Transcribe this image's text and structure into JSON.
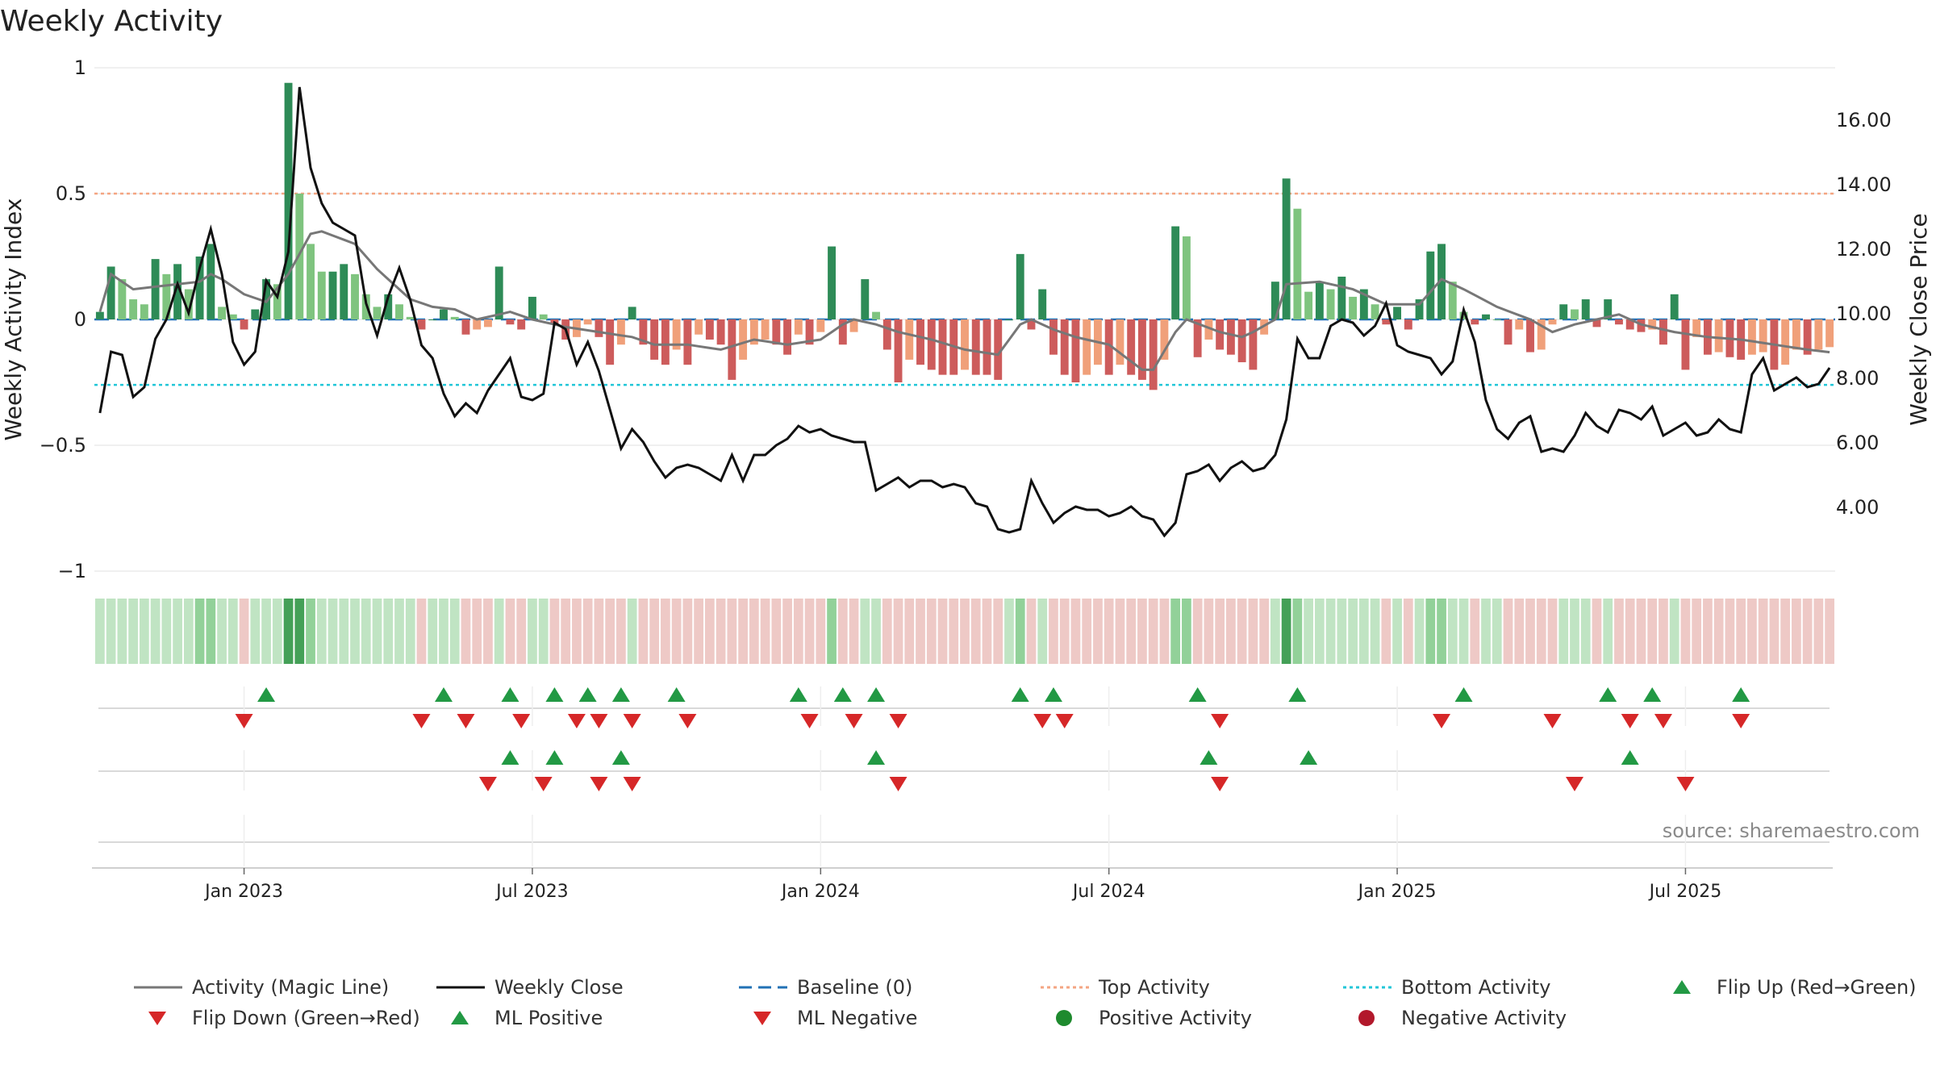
{
  "chart_data": {
    "type": "bar",
    "title": "Weekly Activity",
    "y_left_label": "Weekly Activity Index",
    "y_right_label": "Weekly Close Price",
    "y_left_ticks": [
      "1",
      "0.5",
      "0",
      "−0.5",
      "−1"
    ],
    "y_left_range": [
      -1,
      1
    ],
    "y_right_ticks": [
      "16.00",
      "14.00",
      "12.00",
      "10.00",
      "8.00",
      "6.00",
      "4.00"
    ],
    "y_right_range": [
      2.0,
      17.6
    ],
    "x_ticks": [
      "Jan 2023",
      "Jul 2023",
      "Jan 2024",
      "Jul 2024",
      "Jan 2025",
      "Jul 2025"
    ],
    "x_tick_weeks": [
      13,
      39,
      65,
      91,
      117,
      143
    ],
    "top_activity": 0.5,
    "bottom_activity": -0.26,
    "baseline": 0,
    "weeks": 157,
    "activity_keyframes": [
      [
        0,
        0.03
      ],
      [
        1,
        0.21
      ],
      [
        2,
        0.16
      ],
      [
        3,
        0.08
      ],
      [
        4,
        0.06
      ],
      [
        5,
        0.24
      ],
      [
        6,
        0.18
      ],
      [
        7,
        0.22
      ],
      [
        8,
        0.12
      ],
      [
        9,
        0.25
      ],
      [
        10,
        0.3
      ],
      [
        11,
        0.05
      ],
      [
        12,
        0.02
      ],
      [
        13,
        -0.04
      ],
      [
        14,
        0.04
      ],
      [
        15,
        0.16
      ],
      [
        16,
        0.14
      ],
      [
        17,
        0.94
      ],
      [
        18,
        0.5
      ],
      [
        19,
        0.3
      ],
      [
        20,
        0.19
      ],
      [
        21,
        0.19
      ],
      [
        22,
        0.22
      ],
      [
        23,
        0.18
      ],
      [
        24,
        0.1
      ],
      [
        25,
        0.05
      ],
      [
        26,
        0.1
      ],
      [
        27,
        0.06
      ],
      [
        29,
        -0.04
      ],
      [
        31,
        0.04
      ],
      [
        32,
        0.01
      ],
      [
        33,
        -0.06
      ],
      [
        34,
        -0.04
      ],
      [
        35,
        -0.03
      ],
      [
        36,
        0.21
      ],
      [
        37,
        -0.02
      ],
      [
        38,
        -0.04
      ],
      [
        39,
        0.09
      ],
      [
        40,
        0.02
      ],
      [
        41,
        -0.02
      ],
      [
        42,
        -0.08
      ],
      [
        43,
        -0.07
      ],
      [
        44,
        -0.02
      ],
      [
        45,
        -0.07
      ],
      [
        46,
        -0.18
      ],
      [
        47,
        -0.1
      ],
      [
        48,
        0.05
      ],
      [
        49,
        -0.1
      ],
      [
        50,
        -0.16
      ],
      [
        51,
        -0.18
      ],
      [
        52,
        -0.12
      ],
      [
        53,
        -0.18
      ],
      [
        54,
        -0.06
      ],
      [
        55,
        -0.08
      ],
      [
        56,
        -0.1
      ],
      [
        57,
        -0.24
      ],
      [
        58,
        -0.16
      ],
      [
        59,
        -0.1
      ],
      [
        60,
        -0.08
      ],
      [
        61,
        -0.1
      ],
      [
        62,
        -0.14
      ],
      [
        63,
        -0.06
      ],
      [
        64,
        -0.1
      ],
      [
        65,
        -0.05
      ],
      [
        66,
        0.29
      ],
      [
        67,
        -0.1
      ],
      [
        68,
        -0.05
      ],
      [
        69,
        0.16
      ],
      [
        70,
        0.03
      ],
      [
        71,
        -0.12
      ],
      [
        72,
        -0.25
      ],
      [
        73,
        -0.16
      ],
      [
        74,
        -0.18
      ],
      [
        75,
        -0.2
      ],
      [
        76,
        -0.22
      ],
      [
        77,
        -0.22
      ],
      [
        78,
        -0.2
      ],
      [
        79,
        -0.22
      ],
      [
        80,
        -0.22
      ],
      [
        81,
        -0.24
      ],
      [
        82,
        0.0
      ],
      [
        83,
        0.26
      ],
      [
        84,
        -0.04
      ],
      [
        85,
        0.12
      ],
      [
        86,
        -0.14
      ],
      [
        87,
        -0.22
      ],
      [
        88,
        -0.25
      ],
      [
        89,
        -0.22
      ],
      [
        90,
        -0.18
      ],
      [
        91,
        -0.22
      ],
      [
        92,
        -0.18
      ],
      [
        93,
        -0.22
      ],
      [
        94,
        -0.24
      ],
      [
        95,
        -0.28
      ],
      [
        96,
        -0.16
      ],
      [
        97,
        0.37
      ],
      [
        98,
        0.33
      ],
      [
        99,
        -0.15
      ],
      [
        100,
        -0.08
      ],
      [
        101,
        -0.12
      ],
      [
        102,
        -0.14
      ],
      [
        103,
        -0.17
      ],
      [
        104,
        -0.2
      ],
      [
        105,
        -0.06
      ],
      [
        106,
        0.15
      ],
      [
        107,
        0.56
      ],
      [
        108,
        0.44
      ],
      [
        109,
        0.11
      ],
      [
        110,
        0.15
      ],
      [
        111,
        0.12
      ],
      [
        112,
        0.17
      ],
      [
        113,
        0.09
      ],
      [
        114,
        0.12
      ],
      [
        115,
        0.06
      ],
      [
        116,
        -0.02
      ],
      [
        117,
        0.05
      ],
      [
        118,
        -0.04
      ],
      [
        119,
        0.08
      ],
      [
        120,
        0.27
      ],
      [
        121,
        0.3
      ],
      [
        122,
        0.15
      ],
      [
        123,
        0.03
      ],
      [
        124,
        -0.02
      ],
      [
        125,
        0.02
      ],
      [
        126,
        0.0
      ],
      [
        127,
        -0.1
      ],
      [
        128,
        -0.04
      ],
      [
        129,
        -0.13
      ],
      [
        130,
        -0.12
      ],
      [
        131,
        -0.02
      ],
      [
        132,
        0.06
      ],
      [
        133,
        0.04
      ],
      [
        134,
        0.08
      ],
      [
        135,
        -0.03
      ],
      [
        136,
        0.08
      ],
      [
        137,
        -0.02
      ],
      [
        138,
        -0.04
      ],
      [
        139,
        -0.05
      ],
      [
        140,
        -0.04
      ],
      [
        141,
        -0.1
      ],
      [
        142,
        0.1
      ],
      [
        143,
        -0.2
      ],
      [
        144,
        -0.07
      ],
      [
        145,
        -0.14
      ],
      [
        146,
        -0.13
      ],
      [
        147,
        -0.15
      ],
      [
        148,
        -0.16
      ],
      [
        149,
        -0.14
      ],
      [
        150,
        -0.13
      ],
      [
        151,
        -0.2
      ],
      [
        152,
        -0.18
      ],
      [
        153,
        -0.12
      ],
      [
        154,
        -0.14
      ],
      [
        155,
        -0.12
      ],
      [
        156,
        -0.11
      ]
    ],
    "magic_line_keyframes": [
      [
        0,
        0.03
      ],
      [
        1,
        0.18
      ],
      [
        3,
        0.12
      ],
      [
        5,
        0.13
      ],
      [
        7,
        0.14
      ],
      [
        9,
        0.15
      ],
      [
        10,
        0.18
      ],
      [
        11,
        0.16
      ],
      [
        13,
        0.1
      ],
      [
        15,
        0.07
      ],
      [
        17,
        0.18
      ],
      [
        19,
        0.34
      ],
      [
        20,
        0.35
      ],
      [
        23,
        0.3
      ],
      [
        25,
        0.2
      ],
      [
        28,
        0.08
      ],
      [
        30,
        0.05
      ],
      [
        32,
        0.04
      ],
      [
        34,
        0.0
      ],
      [
        37,
        0.03
      ],
      [
        39,
        0.0
      ],
      [
        42,
        -0.03
      ],
      [
        45,
        -0.05
      ],
      [
        48,
        -0.07
      ],
      [
        50,
        -0.1
      ],
      [
        53,
        -0.1
      ],
      [
        56,
        -0.12
      ],
      [
        59,
        -0.08
      ],
      [
        62,
        -0.1
      ],
      [
        65,
        -0.08
      ],
      [
        67,
        -0.02
      ],
      [
        68,
        0.0
      ],
      [
        70,
        -0.02
      ],
      [
        72,
        -0.05
      ],
      [
        75,
        -0.08
      ],
      [
        78,
        -0.12
      ],
      [
        81,
        -0.14
      ],
      [
        83,
        -0.02
      ],
      [
        84,
        0.0
      ],
      [
        86,
        -0.04
      ],
      [
        88,
        -0.07
      ],
      [
        91,
        -0.1
      ],
      [
        94,
        -0.2
      ],
      [
        95,
        -0.2
      ],
      [
        97,
        -0.05
      ],
      [
        98,
        0.0
      ],
      [
        101,
        -0.05
      ],
      [
        103,
        -0.07
      ],
      [
        104,
        -0.05
      ],
      [
        106,
        0.0
      ],
      [
        107,
        0.14
      ],
      [
        110,
        0.15
      ],
      [
        113,
        0.12
      ],
      [
        116,
        0.06
      ],
      [
        119,
        0.06
      ],
      [
        121,
        0.16
      ],
      [
        123,
        0.12
      ],
      [
        126,
        0.05
      ],
      [
        129,
        0.0
      ],
      [
        131,
        -0.05
      ],
      [
        133,
        -0.02
      ],
      [
        135,
        0.0
      ],
      [
        137,
        0.02
      ],
      [
        139,
        -0.02
      ],
      [
        142,
        -0.05
      ],
      [
        145,
        -0.07
      ],
      [
        148,
        -0.08
      ],
      [
        151,
        -0.1
      ],
      [
        154,
        -0.12
      ],
      [
        156,
        -0.13
      ]
    ],
    "close_keyframes": [
      [
        0,
        6.9
      ],
      [
        1,
        8.8
      ],
      [
        2,
        8.7
      ],
      [
        3,
        7.4
      ],
      [
        4,
        7.7
      ],
      [
        5,
        9.2
      ],
      [
        6,
        9.8
      ],
      [
        7,
        10.9
      ],
      [
        8,
        10.0
      ],
      [
        9,
        11.4
      ],
      [
        10,
        12.6
      ],
      [
        11,
        11.2
      ],
      [
        12,
        9.1
      ],
      [
        13,
        8.4
      ],
      [
        14,
        8.8
      ],
      [
        15,
        11.0
      ],
      [
        16,
        10.5
      ],
      [
        17,
        11.9
      ],
      [
        18,
        17.0
      ],
      [
        19,
        14.5
      ],
      [
        20,
        13.4
      ],
      [
        21,
        12.8
      ],
      [
        22,
        12.6
      ],
      [
        23,
        12.4
      ],
      [
        24,
        10.3
      ],
      [
        25,
        9.3
      ],
      [
        26,
        10.5
      ],
      [
        27,
        11.4
      ],
      [
        28,
        10.4
      ],
      [
        29,
        9.0
      ],
      [
        30,
        8.6
      ],
      [
        31,
        7.5
      ],
      [
        32,
        6.8
      ],
      [
        33,
        7.2
      ],
      [
        34,
        6.9
      ],
      [
        35,
        7.6
      ],
      [
        36,
        8.1
      ],
      [
        37,
        8.6
      ],
      [
        38,
        7.4
      ],
      [
        39,
        7.3
      ],
      [
        40,
        7.5
      ],
      [
        41,
        9.7
      ],
      [
        42,
        9.5
      ],
      [
        43,
        8.4
      ],
      [
        44,
        9.1
      ],
      [
        45,
        8.2
      ],
      [
        46,
        7.0
      ],
      [
        47,
        5.8
      ],
      [
        48,
        6.4
      ],
      [
        49,
        6.0
      ],
      [
        50,
        5.4
      ],
      [
        51,
        4.9
      ],
      [
        52,
        5.2
      ],
      [
        53,
        5.3
      ],
      [
        54,
        5.2
      ],
      [
        55,
        5.0
      ],
      [
        56,
        4.8
      ],
      [
        57,
        5.6
      ],
      [
        58,
        4.8
      ],
      [
        59,
        5.6
      ],
      [
        60,
        5.6
      ],
      [
        61,
        5.9
      ],
      [
        62,
        6.1
      ],
      [
        63,
        6.5
      ],
      [
        64,
        6.3
      ],
      [
        65,
        6.4
      ],
      [
        66,
        6.2
      ],
      [
        67,
        6.1
      ],
      [
        68,
        6.0
      ],
      [
        69,
        6.0
      ],
      [
        70,
        4.5
      ],
      [
        71,
        4.7
      ],
      [
        72,
        4.9
      ],
      [
        73,
        4.6
      ],
      [
        74,
        4.8
      ],
      [
        75,
        4.8
      ],
      [
        76,
        4.6
      ],
      [
        77,
        4.7
      ],
      [
        78,
        4.6
      ],
      [
        79,
        4.1
      ],
      [
        80,
        4.0
      ],
      [
        81,
        3.3
      ],
      [
        82,
        3.2
      ],
      [
        83,
        3.3
      ],
      [
        84,
        4.8
      ],
      [
        85,
        4.1
      ],
      [
        86,
        3.5
      ],
      [
        87,
        3.8
      ],
      [
        88,
        4.0
      ],
      [
        89,
        3.9
      ],
      [
        90,
        3.9
      ],
      [
        91,
        3.7
      ],
      [
        92,
        3.8
      ],
      [
        93,
        4.0
      ],
      [
        94,
        3.7
      ],
      [
        95,
        3.6
      ],
      [
        96,
        3.1
      ],
      [
        97,
        3.5
      ],
      [
        98,
        5.0
      ],
      [
        99,
        5.1
      ],
      [
        100,
        5.3
      ],
      [
        101,
        4.8
      ],
      [
        102,
        5.2
      ],
      [
        103,
        5.4
      ],
      [
        104,
        5.1
      ],
      [
        105,
        5.2
      ],
      [
        106,
        5.6
      ],
      [
        107,
        6.7
      ],
      [
        108,
        9.2
      ],
      [
        109,
        8.6
      ],
      [
        110,
        8.6
      ],
      [
        111,
        9.6
      ],
      [
        112,
        9.8
      ],
      [
        113,
        9.7
      ],
      [
        114,
        9.3
      ],
      [
        115,
        9.6
      ],
      [
        116,
        10.3
      ],
      [
        117,
        9.0
      ],
      [
        118,
        8.8
      ],
      [
        119,
        8.7
      ],
      [
        120,
        8.6
      ],
      [
        121,
        8.1
      ],
      [
        122,
        8.5
      ],
      [
        123,
        10.1
      ],
      [
        124,
        9.1
      ],
      [
        125,
        7.3
      ],
      [
        126,
        6.4
      ],
      [
        127,
        6.1
      ],
      [
        128,
        6.6
      ],
      [
        129,
        6.8
      ],
      [
        130,
        5.7
      ],
      [
        131,
        5.8
      ],
      [
        132,
        5.7
      ],
      [
        133,
        6.2
      ],
      [
        134,
        6.9
      ],
      [
        135,
        6.5
      ],
      [
        136,
        6.3
      ],
      [
        137,
        7.0
      ],
      [
        138,
        6.9
      ],
      [
        139,
        6.7
      ],
      [
        140,
        7.1
      ],
      [
        141,
        6.2
      ],
      [
        142,
        6.4
      ],
      [
        143,
        6.6
      ],
      [
        144,
        6.2
      ],
      [
        145,
        6.3
      ],
      [
        146,
        6.7
      ],
      [
        147,
        6.4
      ],
      [
        148,
        6.3
      ],
      [
        149,
        8.1
      ],
      [
        150,
        8.6
      ],
      [
        151,
        7.6
      ],
      [
        152,
        7.8
      ],
      [
        153,
        8.0
      ],
      [
        154,
        7.7
      ],
      [
        155,
        7.8
      ],
      [
        156,
        8.3
      ]
    ],
    "flip_up_weeks": [
      15,
      31,
      37,
      41,
      44,
      47,
      52,
      63,
      67,
      70,
      83,
      86,
      99,
      108,
      123,
      136,
      140,
      148
    ],
    "flip_down_weeks": [
      13,
      29,
      33,
      38,
      43,
      45,
      48,
      53,
      64,
      68,
      72,
      85,
      87,
      101,
      121,
      131,
      138,
      141,
      148
    ],
    "ml_positive_weeks": [
      37,
      41,
      47,
      70,
      100,
      109,
      138
    ],
    "ml_negative_weeks": [
      35,
      40,
      45,
      48,
      72,
      101,
      133,
      143
    ],
    "legend": [
      {
        "label": "Activity (Magic Line)",
        "kind": "line",
        "color": "#777777"
      },
      {
        "label": "Weekly Close",
        "kind": "line",
        "color": "#111111"
      },
      {
        "label": "Baseline (0)",
        "kind": "dashed",
        "color": "#2171b5"
      },
      {
        "label": "Top Activity",
        "kind": "dotted",
        "color": "#f4a582"
      },
      {
        "label": "Bottom Activity",
        "kind": "dotted",
        "color": "#22c6d8"
      },
      {
        "label": "Flip Up (Red→Green)",
        "kind": "triangle-up",
        "color": "#229944"
      },
      {
        "label": "Flip Down (Green→Red)",
        "kind": "triangle-down",
        "color": "#d62728"
      },
      {
        "label": "ML Positive",
        "kind": "triangle-up",
        "color": "#229944"
      },
      {
        "label": "ML Negative",
        "kind": "triangle-down",
        "color": "#d62728"
      },
      {
        "label": "Positive Activity",
        "kind": "circle",
        "color": "#1e8a2e"
      },
      {
        "label": "Negative Activity",
        "kind": "circle",
        "color": "#b2182b"
      }
    ],
    "source": "source: sharemaestro.com",
    "colors": {
      "pos_strong": "#2e8b57",
      "pos_light": "#7fc47f",
      "neg_strong": "#cd5c5c",
      "neg_light": "#f0a07a",
      "magic": "#777777",
      "close": "#111111",
      "baseline": "#2171b5",
      "top": "#f4a582",
      "bottom": "#22c6d8",
      "up": "#229944",
      "down": "#d62728",
      "grid": "#e6e6e6"
    }
  }
}
